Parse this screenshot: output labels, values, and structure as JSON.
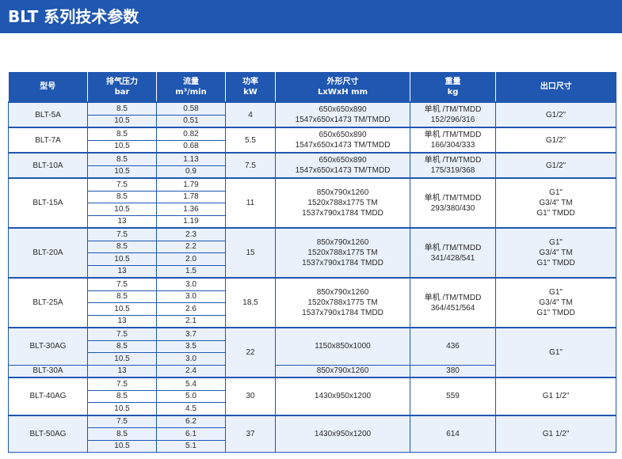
{
  "title": "BLT 系列技术参数",
  "colors": {
    "header_bg": "#1f57b1",
    "header_text": "#ffffff",
    "border": "#1f57b1",
    "row_shade": "#eaf1fb"
  },
  "columns": [
    {
      "key": "model",
      "lines": [
        "型号"
      ]
    },
    {
      "key": "pressure",
      "lines": [
        "排气压力",
        "bar"
      ]
    },
    {
      "key": "flow",
      "lines": [
        "流量",
        "m³/min"
      ]
    },
    {
      "key": "power",
      "lines": [
        "功率",
        "kW"
      ]
    },
    {
      "key": "dimensions",
      "lines": [
        "外形尺寸",
        "LxWxH mm"
      ]
    },
    {
      "key": "weight",
      "lines": [
        "重量",
        "kg"
      ]
    },
    {
      "key": "outlet",
      "lines": [
        "出口尺寸"
      ]
    }
  ],
  "groups": [
    {
      "model": "BLT-5A",
      "power": "4",
      "dimensions": [
        "650x650x890",
        "1547x650x1473 TM/TMDD"
      ],
      "weight": [
        "单机 /TM/TMDD",
        "152/296/316"
      ],
      "outlet": [
        "G1/2\""
      ],
      "rows": [
        {
          "pressure": "8.5",
          "flow": "0.58"
        },
        {
          "pressure": "10.5",
          "flow": "0.51"
        }
      ]
    },
    {
      "model": "BLT-7A",
      "power": "5.5",
      "dimensions": [
        "650x650x890",
        "1547x650x1473 TM/TMDD"
      ],
      "weight": [
        "单机 /TM/TMDD",
        "166/304/333"
      ],
      "outlet": [
        "G1/2\""
      ],
      "rows": [
        {
          "pressure": "8.5",
          "flow": "0.82"
        },
        {
          "pressure": "10.5",
          "flow": "0.68"
        }
      ]
    },
    {
      "model": "BLT-10A",
      "power": "7.5",
      "dimensions": [
        "650x650x890",
        "1547x650x1473 TM/TMDD"
      ],
      "weight": [
        "单机 /TM/TMDD",
        "175/319/368"
      ],
      "outlet": [
        "G1/2\""
      ],
      "rows": [
        {
          "pressure": "8.5",
          "flow": "1.13"
        },
        {
          "pressure": "10.5",
          "flow": "0.9"
        }
      ]
    },
    {
      "model": "BLT-15A",
      "power": "11",
      "dimensions": [
        "850x790x1260",
        "1520x788x1775 TM",
        "1537x790x1784 TMDD"
      ],
      "weight": [
        "单机 /TM/TMDD",
        "293/380/430"
      ],
      "outlet": [
        "G1\"",
        "G3/4\" TM",
        "G1\" TMDD"
      ],
      "rows": [
        {
          "pressure": "7.5",
          "flow": "1.79"
        },
        {
          "pressure": "8.5",
          "flow": "1.78"
        },
        {
          "pressure": "10.5",
          "flow": "1.36"
        },
        {
          "pressure": "13",
          "flow": "1.19"
        }
      ]
    },
    {
      "model": "BLT-20A",
      "power": "15",
      "dimensions": [
        "850x790x1260",
        "1520x788x1775 TM",
        "1537x790x1784 TMDD"
      ],
      "weight": [
        "单机 /TM/TMDD",
        "341/428/541"
      ],
      "outlet": [
        "G1\"",
        "G3/4\" TM",
        "G1\" TMDD"
      ],
      "rows": [
        {
          "pressure": "7.5",
          "flow": "2.3"
        },
        {
          "pressure": "8.5",
          "flow": "2.2"
        },
        {
          "pressure": "10.5",
          "flow": "2.0"
        },
        {
          "pressure": "13",
          "flow": "1.5"
        }
      ]
    },
    {
      "model": "BLT-25A",
      "power": "18.5",
      "dimensions": [
        "850x790x1260",
        "1520x788x1775 TM",
        "1537x790x1784 TMDD"
      ],
      "weight": [
        "单机 /TM/TMDD",
        "364/451/564"
      ],
      "outlet": [
        "G1\"",
        "G3/4\" TM",
        "G1\" TMDD"
      ],
      "rows": [
        {
          "pressure": "7.5",
          "flow": "3.0"
        },
        {
          "pressure": "8.5",
          "flow": "3.0"
        },
        {
          "pressure": "10.5",
          "flow": "2.6"
        },
        {
          "pressure": "13",
          "flow": "2.1"
        }
      ]
    },
    {
      "model": "BLT-30AG",
      "power": "22",
      "dimensions": [
        "1150x850x1000"
      ],
      "weight": [
        "436"
      ],
      "outlet": [
        "G1\""
      ],
      "rows": [
        {
          "pressure": "7.5",
          "flow": "3.7"
        },
        {
          "pressure": "8.5",
          "flow": "3.5"
        },
        {
          "pressure": "10.5",
          "flow": "3.0"
        }
      ],
      "sub": {
        "model": "BLT-30A",
        "pressure": "13",
        "flow": "2.4",
        "dimensions": "850x790x1260",
        "weight": "380"
      }
    },
    {
      "model": "BLT-40AG",
      "power": "30",
      "dimensions": [
        "1430x950x1200"
      ],
      "weight": [
        "559"
      ],
      "outlet": [
        "G1 1/2\""
      ],
      "rows": [
        {
          "pressure": "7.5",
          "flow": "5.4"
        },
        {
          "pressure": "8.5",
          "flow": "5.0"
        },
        {
          "pressure": "10.5",
          "flow": "4.5"
        }
      ]
    },
    {
      "model": "BLT-50AG",
      "power": "37",
      "dimensions": [
        "1430x950x1200"
      ],
      "weight": [
        "614"
      ],
      "outlet": [
        "G1 1/2\""
      ],
      "rows": [
        {
          "pressure": "7.5",
          "flow": "6.2"
        },
        {
          "pressure": "8.5",
          "flow": "6.1"
        },
        {
          "pressure": "10.5",
          "flow": "5.1"
        }
      ]
    }
  ]
}
